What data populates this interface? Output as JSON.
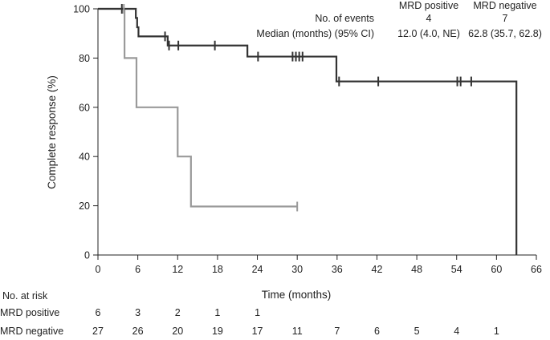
{
  "chart_data": {
    "type": "line",
    "subtype": "kaplan-meier",
    "xlabel": "Time (months)",
    "ylabel": "Complete response (%)",
    "xlim": [
      0,
      66
    ],
    "ylim": [
      0,
      100
    ],
    "xticks": [
      0,
      6,
      12,
      18,
      24,
      30,
      36,
      42,
      48,
      54,
      60,
      66
    ],
    "yticks": [
      0,
      20,
      40,
      60,
      80,
      100
    ],
    "series": [
      {
        "name": "MRD positive",
        "color": "#9a9a9a",
        "steps": [
          [
            0,
            100
          ],
          [
            4,
            80
          ],
          [
            5.8,
            60
          ],
          [
            12,
            40
          ],
          [
            14,
            19.7
          ],
          [
            30,
            19.7
          ]
        ],
        "censor": [
          3.9,
          30
        ]
      },
      {
        "name": "MRD negative",
        "color": "#333333",
        "steps": [
          [
            0,
            100
          ],
          [
            5.7,
            96.3
          ],
          [
            5.9,
            92.5
          ],
          [
            6.1,
            88.8
          ],
          [
            10.5,
            85.1
          ],
          [
            22.5,
            80.6
          ],
          [
            35.9,
            70.5
          ],
          [
            63,
            70.5
          ],
          [
            63,
            0
          ]
        ],
        "censor": [
          3.6,
          10.1,
          10.7,
          12.1,
          17.6,
          24.1,
          29.3,
          29.8,
          30.3,
          30.8,
          36.3,
          42.2,
          54.1,
          54.6,
          56.2
        ]
      }
    ],
    "events_table": {
      "row_labels": [
        "No. of events",
        "Median (months) (95% CI)"
      ],
      "columns": [
        {
          "header": "MRD positive",
          "values": [
            "4",
            "12.0 (4.0, NE)"
          ]
        },
        {
          "header": "MRD negative",
          "values": [
            "7",
            "62.8 (35.7, 62.8)"
          ]
        }
      ]
    },
    "risk_table": {
      "title": "No. at risk",
      "times": [
        0,
        6,
        12,
        18,
        24,
        30,
        36,
        42,
        48,
        54,
        60
      ],
      "rows": [
        {
          "label": "MRD positive",
          "values": [
            "6",
            "3",
            "2",
            "1",
            "1",
            "",
            "",
            "",
            "",
            "",
            ""
          ]
        },
        {
          "label": "MRD negative",
          "values": [
            "27",
            "26",
            "20",
            "19",
            "17",
            "11",
            "7",
            "6",
            "5",
            "4",
            "1"
          ]
        }
      ]
    }
  }
}
